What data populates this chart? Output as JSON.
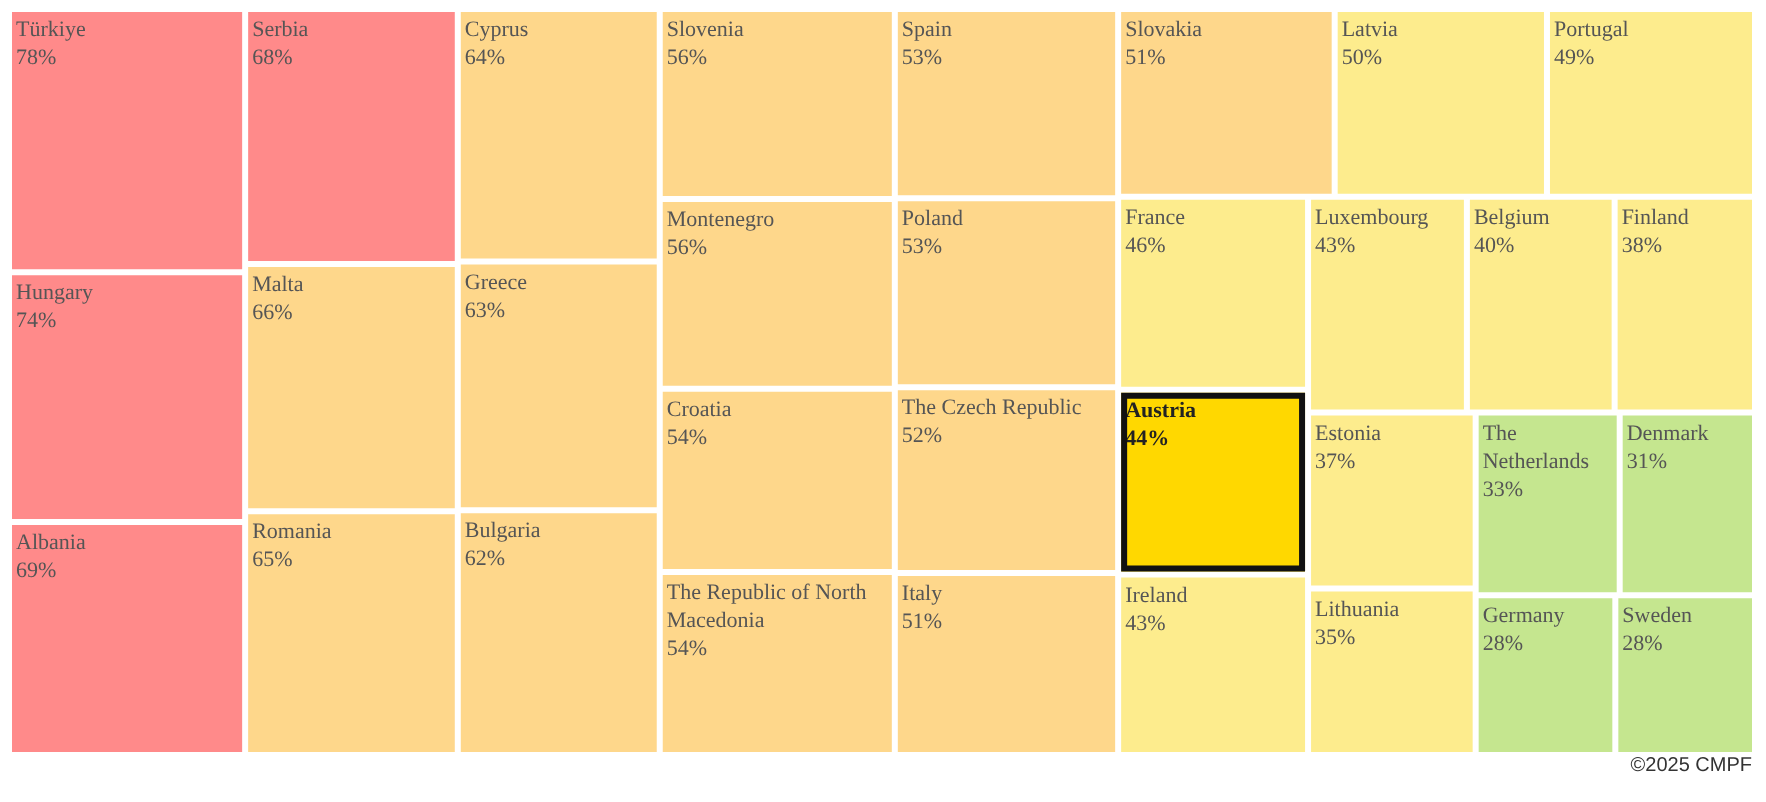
{
  "chart_data": {
    "type": "other",
    "categories": [
      "Türkiye",
      "Hungary",
      "Albania",
      "Serbia",
      "Malta",
      "Romania",
      "Cyprus",
      "Greece",
      "Bulgaria",
      "Slovenia",
      "Montenegro",
      "Croatia",
      "The Republic of North Macedonia",
      "Spain",
      "Poland",
      "The Czech Republic",
      "Italy",
      "Slovakia",
      "Latvia",
      "Portugal",
      "France",
      "Austria",
      "Ireland",
      "Luxembourg",
      "Belgium",
      "Finland",
      "Estonia",
      "Lithuania",
      "The Netherlands",
      "Denmark",
      "Germany",
      "Sweden"
    ],
    "values": [
      78,
      74,
      69,
      68,
      66,
      65,
      64,
      63,
      62,
      56,
      56,
      54,
      54,
      53,
      53,
      52,
      51,
      51,
      50,
      49,
      46,
      44,
      43,
      43,
      40,
      38,
      37,
      35,
      33,
      31,
      28,
      28
    ],
    "value_labels": [
      "78%",
      "74%",
      "69%",
      "68%",
      "66%",
      "65%",
      "64%",
      "63%",
      "62%",
      "56%",
      "56%",
      "54%",
      "54%",
      "53%",
      "53%",
      "52%",
      "51%",
      "51%",
      "50%",
      "49%",
      "46%",
      "44%",
      "43%",
      "43%",
      "40%",
      "38%",
      "37%",
      "35%",
      "33%",
      "31%",
      "28%",
      "28%"
    ],
    "colors": [
      "#ff8a8a",
      "#ff8a8a",
      "#ff8a8a",
      "#ff8a8a",
      "#fed78b",
      "#fed78b",
      "#fed78b",
      "#fed78b",
      "#fed78b",
      "#fed78b",
      "#fed78b",
      "#fed78b",
      "#fed78b",
      "#fed78b",
      "#fed78b",
      "#fed78b",
      "#fed78b",
      "#fed78b",
      "#fdec8d",
      "#fdec8d",
      "#fdec8d",
      "#ffd800",
      "#fdec8d",
      "#fdec8d",
      "#fdec8d",
      "#fdec8d",
      "#fdec8d",
      "#fdec8d",
      "#c5e68f",
      "#c5e68f",
      "#c5e68f",
      "#c5e68f"
    ],
    "annotations": [
      "©2025 CMPF"
    ]
  }
}
